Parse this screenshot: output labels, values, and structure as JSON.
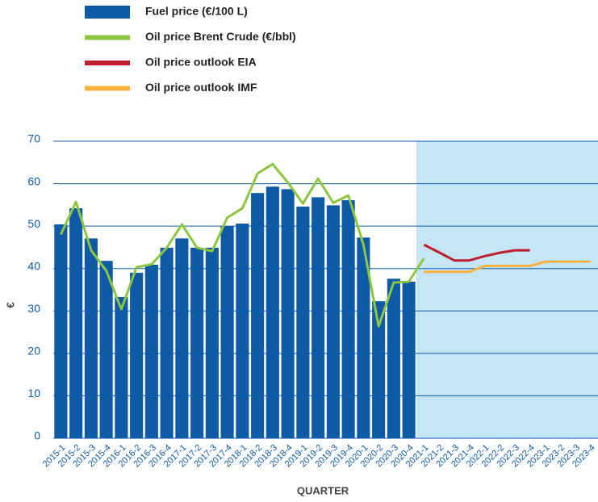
{
  "chart_data": {
    "type": "bar_line",
    "y_label": "€",
    "x_label": "QUARTER",
    "categories": [
      "2015-1",
      "2015-2",
      "2015-3",
      "2015-4",
      "2016-1",
      "2016-2",
      "2016-3",
      "2016-4",
      "2017-1",
      "2017-2",
      "2017-3",
      "2017-4",
      "2018-1",
      "2018-2",
      "2018-3",
      "2018-4",
      "2019-1",
      "2019-2",
      "2019-3",
      "2019-4",
      "2020-1",
      "2020-2",
      "2020-3",
      "2020-4",
      "2021-1",
      "2021-2",
      "2021-3",
      "2021-4",
      "2022-1",
      "2022-2",
      "2022-3",
      "2022-4",
      "2023-1",
      "2023-2",
      "2023-3",
      "2023-4"
    ],
    "series": [
      {
        "name": "Fuel price (€/100 L)",
        "color": "#0e5aa7",
        "kind": "bar",
        "values": [
          50.4,
          54.2,
          47.1,
          41.8,
          33.3,
          39,
          40.9,
          44.9,
          47.1,
          44.9,
          44.9,
          50,
          50.6,
          57.8,
          59.3,
          58.7,
          54.6,
          56.8,
          54.9,
          56.1,
          47.3,
          32.3,
          37.6,
          36.9,
          null,
          null,
          null,
          null,
          null,
          null,
          null,
          null,
          null,
          null,
          null,
          null
        ]
      },
      {
        "name": "Oil price Brent Crude (€/bbl)",
        "color": "#8dc63f",
        "kind": "line",
        "values": [
          48,
          55.7,
          44.3,
          39.5,
          30.4,
          40.3,
          41,
          44.9,
          50.4,
          44.9,
          44.1,
          52,
          54.2,
          62.4,
          64.6,
          60.3,
          55.3,
          61.2,
          55.5,
          57.2,
          45.6,
          26.4,
          36.7,
          36.9,
          42.4,
          null,
          null,
          null,
          null,
          null,
          null,
          null,
          null,
          null,
          null,
          null
        ]
      },
      {
        "name": "Oil price outlook EIA",
        "color": "#be1e2d",
        "kind": "line",
        "values": [
          null,
          null,
          null,
          null,
          null,
          null,
          null,
          null,
          null,
          null,
          null,
          null,
          null,
          null,
          null,
          null,
          null,
          null,
          null,
          null,
          null,
          null,
          null,
          null,
          45.6,
          43.8,
          41.9,
          41.9,
          42.9,
          43.7,
          44.3,
          44.3,
          null,
          null,
          null,
          null
        ]
      },
      {
        "name": "Oil price outlook IMF",
        "color": "#fbb040",
        "kind": "line",
        "values": [
          null,
          null,
          null,
          null,
          null,
          null,
          null,
          null,
          null,
          null,
          null,
          null,
          null,
          null,
          null,
          null,
          null,
          null,
          null,
          null,
          null,
          null,
          null,
          null,
          39.2,
          39.2,
          39.2,
          39.2,
          40.6,
          40.6,
          40.6,
          40.6,
          41.6,
          41.6,
          41.6,
          41.6
        ]
      }
    ],
    "ylim": [
      0,
      70
    ],
    "yticks": [
      0,
      10,
      20,
      30,
      40,
      50,
      60,
      70
    ],
    "grid": true,
    "forecast_shade": "#c5e6f7"
  }
}
